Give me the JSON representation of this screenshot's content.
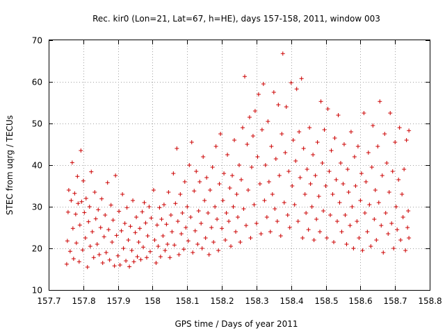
{
  "chart_data": {
    "type": "scatter",
    "title": "Rec. kir0 (Lon=21, Lat=67, h=HE), days 157-158, 2011, window 003",
    "xlabel": "GPS time / Days of year 2011",
    "ylabel": "STEC from uqrg / TECUs",
    "xlim": [
      157.7,
      158.8
    ],
    "ylim": [
      10,
      70
    ],
    "xticks": [
      "157.7",
      "157.8",
      "157.9",
      "158",
      "158.1",
      "158.2",
      "158.3",
      "158.4",
      "158.5",
      "158.6",
      "158.7",
      "158.8"
    ],
    "yticks": [
      "10",
      "20",
      "30",
      "40",
      "50",
      "60",
      "70"
    ],
    "grid": true,
    "marker": "+",
    "color": "#cc0000",
    "points": [
      [
        157.752,
        16.2
      ],
      [
        157.754,
        21.8
      ],
      [
        157.756,
        28.7
      ],
      [
        157.758,
        34.0
      ],
      [
        157.762,
        19.3
      ],
      [
        157.765,
        31.5
      ],
      [
        157.768,
        40.6
      ],
      [
        157.77,
        24.8
      ],
      [
        157.772,
        17.5
      ],
      [
        157.775,
        33.2
      ],
      [
        157.778,
        28.2
      ],
      [
        157.78,
        21.3
      ],
      [
        157.783,
        37.3
      ],
      [
        157.785,
        30.8
      ],
      [
        157.788,
        16.8
      ],
      [
        157.79,
        25.6
      ],
      [
        157.793,
        43.5
      ],
      [
        157.795,
        31.2
      ],
      [
        157.798,
        19.6
      ],
      [
        157.8,
        36.2
      ],
      [
        157.803,
        28.6
      ],
      [
        157.806,
        22.5
      ],
      [
        157.808,
        32.0
      ],
      [
        157.812,
        15.5
      ],
      [
        157.815,
        26.4
      ],
      [
        157.818,
        30.0
      ],
      [
        157.82,
        20.5
      ],
      [
        157.823,
        38.4
      ],
      [
        157.826,
        24.0
      ],
      [
        157.83,
        17.8
      ],
      [
        157.833,
        33.5
      ],
      [
        157.836,
        27.1
      ],
      [
        157.84,
        21.0
      ],
      [
        157.843,
        29.3
      ],
      [
        157.846,
        18.5
      ],
      [
        157.85,
        25.0
      ],
      [
        157.853,
        31.9
      ],
      [
        157.856,
        16.5
      ],
      [
        157.86,
        22.8
      ],
      [
        157.863,
        28.0
      ],
      [
        157.866,
        19.0
      ],
      [
        157.87,
        35.8
      ],
      [
        157.873,
        24.5
      ],
      [
        157.876,
        17.2
      ],
      [
        157.88,
        30.4
      ],
      [
        157.883,
        21.5
      ],
      [
        157.886,
        26.8
      ],
      [
        157.89,
        15.8
      ],
      [
        157.893,
        37.5
      ],
      [
        157.896,
        23.1
      ],
      [
        157.9,
        18.2
      ],
      [
        157.903,
        28.9
      ],
      [
        157.906,
        16.0
      ],
      [
        157.91,
        24.2
      ],
      [
        157.913,
        33.0
      ],
      [
        157.916,
        20.0
      ],
      [
        157.92,
        26.0
      ],
      [
        157.923,
        17.0
      ],
      [
        157.926,
        29.8
      ],
      [
        157.93,
        22.0
      ],
      [
        157.933,
        15.6
      ],
      [
        157.936,
        25.3
      ],
      [
        157.94,
        19.5
      ],
      [
        157.943,
        31.5
      ],
      [
        157.946,
        16.8
      ],
      [
        157.95,
        23.8
      ],
      [
        157.953,
        27.5
      ],
      [
        157.956,
        18.0
      ],
      [
        157.96,
        21.5
      ],
      [
        157.963,
        24.8
      ],
      [
        157.966,
        17.3
      ],
      [
        157.97,
        28.8
      ],
      [
        157.973,
        20.3
      ],
      [
        157.976,
        31.0
      ],
      [
        157.98,
        26.1
      ],
      [
        157.983,
        17.8
      ],
      [
        157.986,
        23.0
      ],
      [
        157.99,
        30.0
      ],
      [
        157.993,
        19.2
      ],
      [
        157.996,
        27.3
      ],
      [
        158.003,
        34.0
      ],
      [
        158.006,
        22.0
      ],
      [
        158.01,
        16.5
      ],
      [
        158.013,
        25.6
      ],
      [
        158.016,
        20.5
      ],
      [
        158.02,
        29.8
      ],
      [
        158.023,
        18.0
      ],
      [
        158.026,
        27.0
      ],
      [
        158.03,
        23.0
      ],
      [
        158.033,
        30.5
      ],
      [
        158.036,
        19.5
      ],
      [
        158.04,
        25.8
      ],
      [
        158.043,
        21.0
      ],
      [
        158.046,
        33.5
      ],
      [
        158.05,
        17.8
      ],
      [
        158.053,
        28.0
      ],
      [
        158.056,
        24.0
      ],
      [
        158.06,
        38.0
      ],
      [
        158.063,
        20.8
      ],
      [
        158.066,
        30.8
      ],
      [
        158.07,
        44.0
      ],
      [
        158.073,
        26.5
      ],
      [
        158.076,
        18.5
      ],
      [
        158.08,
        33.0
      ],
      [
        158.083,
        23.5
      ],
      [
        158.086,
        28.5
      ],
      [
        158.09,
        19.8
      ],
      [
        158.093,
        36.0
      ],
      [
        158.096,
        25.0
      ],
      [
        158.1,
        30.0
      ],
      [
        158.103,
        21.8
      ],
      [
        158.106,
        40.0
      ],
      [
        158.11,
        27.5
      ],
      [
        158.113,
        45.5
      ],
      [
        158.116,
        19.0
      ],
      [
        158.12,
        33.8
      ],
      [
        158.123,
        24.2
      ],
      [
        158.126,
        38.5
      ],
      [
        158.13,
        21.0
      ],
      [
        158.133,
        29.0
      ],
      [
        158.136,
        36.0
      ],
      [
        158.14,
        26.0
      ],
      [
        158.143,
        20.0
      ],
      [
        158.146,
        42.0
      ],
      [
        158.15,
        31.5
      ],
      [
        158.153,
        22.5
      ],
      [
        158.156,
        37.0
      ],
      [
        158.16,
        28.5
      ],
      [
        158.163,
        18.5
      ],
      [
        158.166,
        34.0
      ],
      [
        158.17,
        25.0
      ],
      [
        158.173,
        39.5
      ],
      [
        158.176,
        21.5
      ],
      [
        158.18,
        30.0
      ],
      [
        158.183,
        44.5
      ],
      [
        158.186,
        27.0
      ],
      [
        158.19,
        19.5
      ],
      [
        158.193,
        35.5
      ],
      [
        158.196,
        47.5
      ],
      [
        158.2,
        24.8
      ],
      [
        158.203,
        31.5
      ],
      [
        158.206,
        38.0
      ],
      [
        158.21,
        22.0
      ],
      [
        158.213,
        28.5
      ],
      [
        158.216,
        42.5
      ],
      [
        158.22,
        26.5
      ],
      [
        158.223,
        34.5
      ],
      [
        158.226,
        20.5
      ],
      [
        158.23,
        37.5
      ],
      [
        158.233,
        30.0
      ],
      [
        158.236,
        46.0
      ],
      [
        158.24,
        24.0
      ],
      [
        158.243,
        33.0
      ],
      [
        158.246,
        27.5
      ],
      [
        158.25,
        40.0
      ],
      [
        158.253,
        21.5
      ],
      [
        158.256,
        36.5
      ],
      [
        158.26,
        49.0
      ],
      [
        158.263,
        29.5
      ],
      [
        158.266,
        61.3
      ],
      [
        158.27,
        25.5
      ],
      [
        158.273,
        45.0
      ],
      [
        158.276,
        34.0
      ],
      [
        158.28,
        51.5
      ],
      [
        158.283,
        22.5
      ],
      [
        158.286,
        39.5
      ],
      [
        158.29,
        47.0
      ],
      [
        158.293,
        30.5
      ],
      [
        158.296,
        53.0
      ],
      [
        158.3,
        26.0
      ],
      [
        158.303,
        42.0
      ],
      [
        158.306,
        57.0
      ],
      [
        158.31,
        35.5
      ],
      [
        158.313,
        23.5
      ],
      [
        158.316,
        48.5
      ],
      [
        158.32,
        59.5
      ],
      [
        158.323,
        31.5
      ],
      [
        158.326,
        40.0
      ],
      [
        158.33,
        27.5
      ],
      [
        158.333,
        50.5
      ],
      [
        158.336,
        36.0
      ],
      [
        158.34,
        24.0
      ],
      [
        158.343,
        44.5
      ],
      [
        158.346,
        33.0
      ],
      [
        158.35,
        57.5
      ],
      [
        158.353,
        29.5
      ],
      [
        158.356,
        41.5
      ],
      [
        158.36,
        26.5
      ],
      [
        158.363,
        54.5
      ],
      [
        158.366,
        37.5
      ],
      [
        158.37,
        23.0
      ],
      [
        158.373,
        47.5
      ],
      [
        158.376,
        66.8
      ],
      [
        158.38,
        31.0
      ],
      [
        158.383,
        43.0
      ],
      [
        158.386,
        54.0
      ],
      [
        158.39,
        28.0
      ],
      [
        158.393,
        38.5
      ],
      [
        158.396,
        25.0
      ],
      [
        158.4,
        59.8
      ],
      [
        158.403,
        35.0
      ],
      [
        158.406,
        46.0
      ],
      [
        158.41,
        30.5
      ],
      [
        158.413,
        41.0
      ],
      [
        158.416,
        58.3
      ],
      [
        158.42,
        26.5
      ],
      [
        158.423,
        48.0
      ],
      [
        158.426,
        37.0
      ],
      [
        158.43,
        60.8
      ],
      [
        158.433,
        22.5
      ],
      [
        158.436,
        44.0
      ],
      [
        158.44,
        33.0
      ],
      [
        158.443,
        28.5
      ],
      [
        158.446,
        39.0
      ],
      [
        158.45,
        24.5
      ],
      [
        158.453,
        49.0
      ],
      [
        158.456,
        35.5
      ],
      [
        158.46,
        30.0
      ],
      [
        158.463,
        42.5
      ],
      [
        158.466,
        22.0
      ],
      [
        158.47,
        37.5
      ],
      [
        158.473,
        27.0
      ],
      [
        158.476,
        45.5
      ],
      [
        158.48,
        32.5
      ],
      [
        158.483,
        24.0
      ],
      [
        158.486,
        55.3
      ],
      [
        158.49,
        40.5
      ],
      [
        158.493,
        29.0
      ],
      [
        158.496,
        48.5
      ],
      [
        158.5,
        35.0
      ],
      [
        158.503,
        22.5
      ],
      [
        158.506,
        53.5
      ],
      [
        158.51,
        38.5
      ],
      [
        158.513,
        28.0
      ],
      [
        158.516,
        43.5
      ],
      [
        158.52,
        33.0
      ],
      [
        158.523,
        21.5
      ],
      [
        158.526,
        46.5
      ],
      [
        158.53,
        36.5
      ],
      [
        158.533,
        26.5
      ],
      [
        158.536,
        52.0
      ],
      [
        158.54,
        31.0
      ],
      [
        158.543,
        40.5
      ],
      [
        158.546,
        24.0
      ],
      [
        158.55,
        35.5
      ],
      [
        158.553,
        45.0
      ],
      [
        158.556,
        28.0
      ],
      [
        158.56,
        21.0
      ],
      [
        158.563,
        39.0
      ],
      [
        158.566,
        33.5
      ],
      [
        158.57,
        25.5
      ],
      [
        158.573,
        48.0
      ],
      [
        158.576,
        30.0
      ],
      [
        158.58,
        20.0
      ],
      [
        158.583,
        42.0
      ],
      [
        158.586,
        35.0
      ],
      [
        158.59,
        26.5
      ],
      [
        158.593,
        44.5
      ],
      [
        158.596,
        22.5
      ],
      [
        158.6,
        31.5
      ],
      [
        158.603,
        38.0
      ],
      [
        158.606,
        19.5
      ],
      [
        158.61,
        52.5
      ],
      [
        158.613,
        28.5
      ],
      [
        158.616,
        36.0
      ],
      [
        158.62,
        24.0
      ],
      [
        158.623,
        43.0
      ],
      [
        158.626,
        30.5
      ],
      [
        158.63,
        20.5
      ],
      [
        158.633,
        39.5
      ],
      [
        158.636,
        49.5
      ],
      [
        158.64,
        27.0
      ],
      [
        158.643,
        34.0
      ],
      [
        158.646,
        22.0
      ],
      [
        158.65,
        44.5
      ],
      [
        158.653,
        31.0
      ],
      [
        158.656,
        55.3
      ],
      [
        158.66,
        25.5
      ],
      [
        158.663,
        37.5
      ],
      [
        158.666,
        19.0
      ],
      [
        158.67,
        47.5
      ],
      [
        158.673,
        28.5
      ],
      [
        158.676,
        40.5
      ],
      [
        158.68,
        23.5
      ],
      [
        158.683,
        33.5
      ],
      [
        158.686,
        52.5
      ],
      [
        158.69,
        26.0
      ],
      [
        158.693,
        38.5
      ],
      [
        158.696,
        20.0
      ],
      [
        158.7,
        45.5
      ],
      [
        158.703,
        30.0
      ],
      [
        158.706,
        24.5
      ],
      [
        158.71,
        36.5
      ],
      [
        158.713,
        49.0
      ],
      [
        158.716,
        22.0
      ],
      [
        158.72,
        33.0
      ],
      [
        158.723,
        27.5
      ],
      [
        158.726,
        39.0
      ],
      [
        158.73,
        19.5
      ],
      [
        158.733,
        46.0
      ],
      [
        158.736,
        25.0
      ],
      [
        158.738,
        29.0
      ],
      [
        158.74,
        48.3
      ],
      [
        158.74,
        22.5
      ]
    ]
  }
}
